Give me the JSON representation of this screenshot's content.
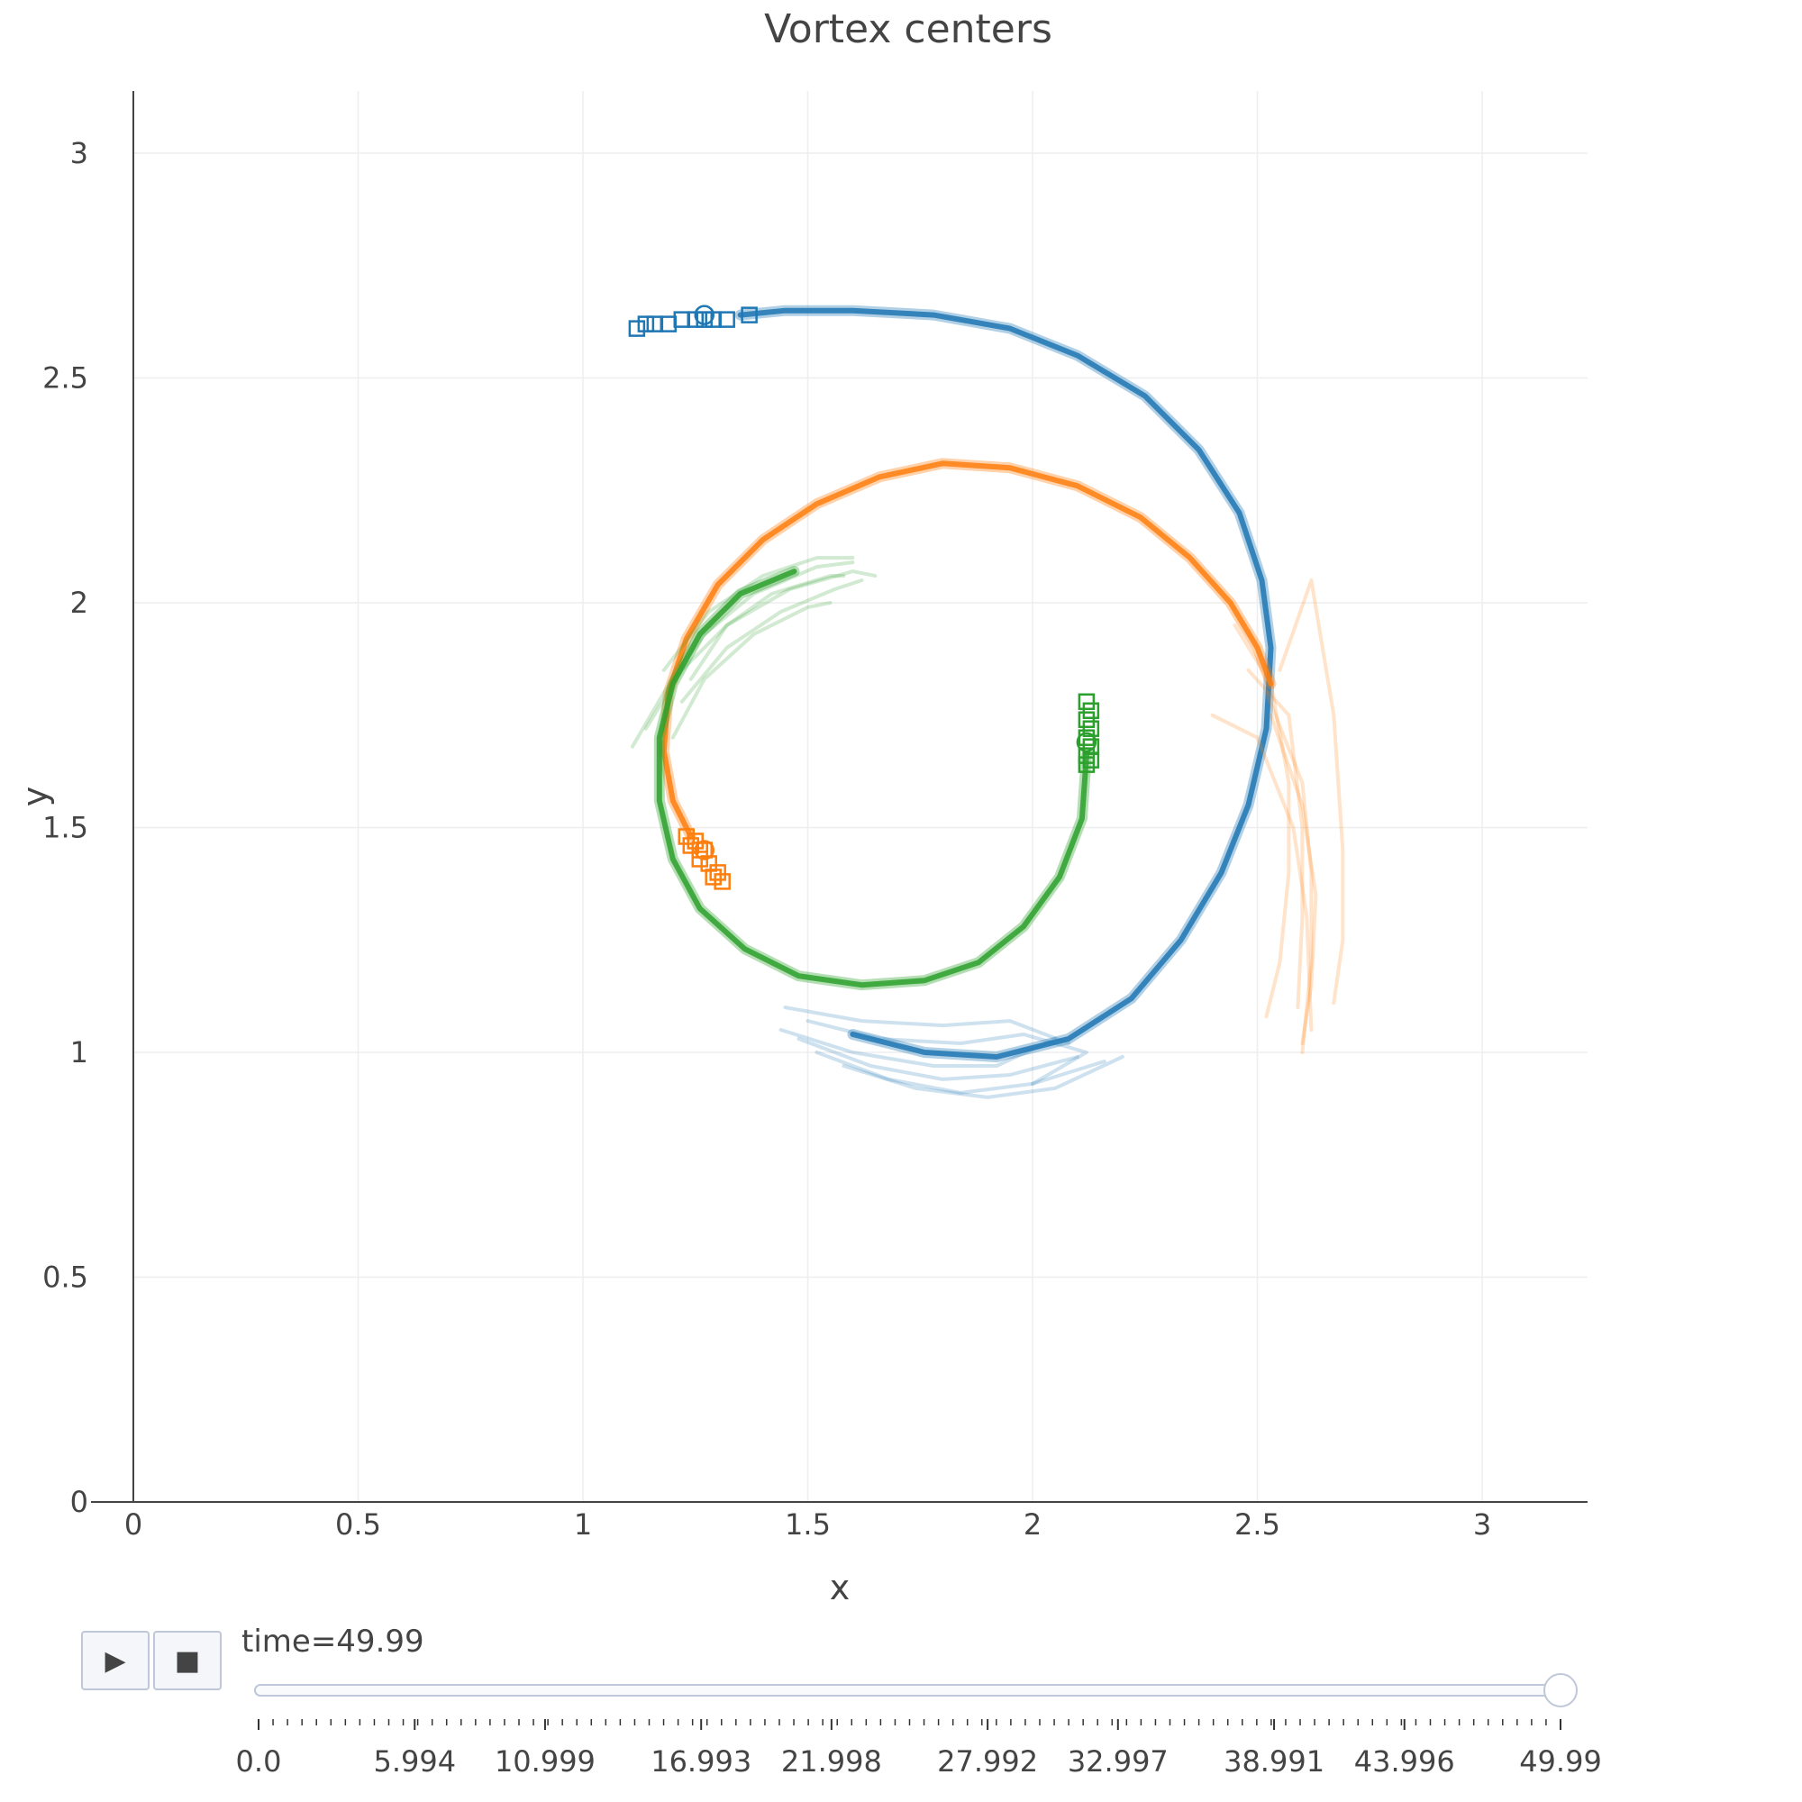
{
  "controls": {
    "play_icon": "play-icon",
    "stop_icon": "stop-icon",
    "play_glyph": "▶",
    "stop_glyph": "■"
  },
  "slider": {
    "label": "time=49.99",
    "current": 49.99,
    "min": 0.0,
    "max": 49.99,
    "labels": [
      "0.0",
      "5.994",
      "10.999",
      "16.993",
      "21.998",
      "27.992",
      "32.997",
      "38.991",
      "43.996",
      "49.99"
    ],
    "rail_color": "#bec8d9"
  },
  "chart_data": {
    "type": "scatter",
    "title": "Vortex centers",
    "xlabel": "x",
    "ylabel": "y",
    "xlim": [
      -0.1,
      3.23
    ],
    "ylim": [
      0,
      3.15
    ],
    "x_ticks": [
      0,
      0.5,
      1,
      1.5,
      2,
      2.5,
      3
    ],
    "x_tick_labels": [
      "0",
      "0.5",
      "1",
      "1.5",
      "2",
      "2.5",
      "3"
    ],
    "y_ticks": [
      0,
      0.5,
      1,
      1.5,
      2,
      2.5,
      3
    ],
    "y_tick_labels": [
      "0",
      "0.5",
      "1",
      "1.5",
      "2",
      "2.5",
      "3"
    ],
    "grid": true,
    "series": [
      {
        "color": "#1f77b4",
        "path": [
          [
            1.35,
            2.64
          ],
          [
            1.45,
            2.65
          ],
          [
            1.6,
            2.65
          ],
          [
            1.78,
            2.64
          ],
          [
            1.95,
            2.61
          ],
          [
            2.1,
            2.55
          ],
          [
            2.25,
            2.46
          ],
          [
            2.37,
            2.34
          ],
          [
            2.46,
            2.2
          ],
          [
            2.51,
            2.05
          ],
          [
            2.53,
            1.9
          ],
          [
            2.52,
            1.72
          ],
          [
            2.48,
            1.55
          ],
          [
            2.42,
            1.4
          ],
          [
            2.33,
            1.25
          ],
          [
            2.22,
            1.12
          ],
          [
            2.08,
            1.03
          ],
          [
            1.92,
            0.99
          ],
          [
            1.76,
            1.0
          ],
          [
            1.6,
            1.04
          ]
        ],
        "markers": [
          [
            1.12,
            2.61
          ],
          [
            1.14,
            2.62
          ],
          [
            1.16,
            2.62
          ],
          [
            1.19,
            2.62
          ],
          [
            1.22,
            2.63
          ],
          [
            1.25,
            2.63
          ],
          [
            1.27,
            2.63
          ],
          [
            1.29,
            2.63
          ],
          [
            1.32,
            2.63
          ],
          [
            1.37,
            2.64
          ]
        ],
        "current": [
          1.27,
          2.64
        ],
        "ghosts": [
          [
            [
              1.44,
              1.05
            ],
            [
              1.6,
              1.0
            ],
            [
              1.78,
              0.97
            ],
            [
              1.92,
              0.97
            ],
            [
              2.05,
              1.03
            ]
          ],
          [
            [
              1.48,
              1.03
            ],
            [
              1.64,
              0.97
            ],
            [
              1.8,
              0.94
            ],
            [
              1.95,
              0.95
            ],
            [
              2.1,
              0.99
            ]
          ],
          [
            [
              1.52,
              1.0
            ],
            [
              1.68,
              0.94
            ],
            [
              1.84,
              0.91
            ],
            [
              2.0,
              0.93
            ],
            [
              2.16,
              0.98
            ]
          ],
          [
            [
              1.58,
              0.97
            ],
            [
              1.74,
              0.92
            ],
            [
              1.9,
              0.9
            ],
            [
              2.05,
              0.92
            ],
            [
              2.2,
              0.99
            ]
          ],
          [
            [
              1.5,
              1.07
            ],
            [
              1.66,
              1.03
            ],
            [
              1.84,
              1.02
            ],
            [
              1.98,
              1.04
            ],
            [
              2.12,
              1.0
            ],
            [
              2.0,
              0.93
            ]
          ],
          [
            [
              1.45,
              1.1
            ],
            [
              1.62,
              1.07
            ],
            [
              1.8,
              1.06
            ],
            [
              1.95,
              1.07
            ],
            [
              2.08,
              1.02
            ]
          ]
        ]
      },
      {
        "color": "#ff7f0e",
        "path": [
          [
            1.24,
            1.48
          ],
          [
            1.2,
            1.56
          ],
          [
            1.18,
            1.67
          ],
          [
            1.19,
            1.8
          ],
          [
            1.23,
            1.92
          ],
          [
            1.3,
            2.04
          ],
          [
            1.4,
            2.14
          ],
          [
            1.52,
            2.22
          ],
          [
            1.66,
            2.28
          ],
          [
            1.8,
            2.31
          ],
          [
            1.95,
            2.3
          ],
          [
            2.1,
            2.26
          ],
          [
            2.24,
            2.19
          ],
          [
            2.35,
            2.1
          ],
          [
            2.44,
            2.0
          ],
          [
            2.5,
            1.9
          ],
          [
            2.53,
            1.82
          ]
        ],
        "markers": [
          [
            1.23,
            1.48
          ],
          [
            1.25,
            1.47
          ],
          [
            1.24,
            1.46
          ],
          [
            1.26,
            1.45
          ],
          [
            1.27,
            1.45
          ],
          [
            1.26,
            1.43
          ],
          [
            1.28,
            1.42
          ],
          [
            1.3,
            1.4
          ],
          [
            1.29,
            1.39
          ],
          [
            1.31,
            1.38
          ]
        ],
        "current": [
          1.27,
          1.45
        ],
        "ghosts": [
          [
            [
              2.45,
              1.95
            ],
            [
              2.53,
              1.82
            ],
            [
              2.57,
              1.6
            ],
            [
              2.57,
              1.4
            ],
            [
              2.55,
              1.2
            ],
            [
              2.52,
              1.08
            ]
          ],
          [
            [
              2.48,
              1.85
            ],
            [
              2.57,
              1.75
            ],
            [
              2.6,
              1.5
            ],
            [
              2.6,
              1.3
            ],
            [
              2.59,
              1.1
            ]
          ],
          [
            [
              2.4,
              1.75
            ],
            [
              2.5,
              1.7
            ],
            [
              2.58,
              1.5
            ],
            [
              2.61,
              1.3
            ],
            [
              2.62,
              1.05
            ]
          ],
          [
            [
              2.52,
              1.8
            ],
            [
              2.6,
              1.6
            ],
            [
              2.62,
              1.4
            ],
            [
              2.62,
              1.2
            ],
            [
              2.6,
              1.0
            ]
          ],
          [
            [
              2.55,
              1.85
            ],
            [
              2.62,
              2.05
            ],
            [
              2.67,
              1.75
            ],
            [
              2.69,
              1.45
            ],
            [
              2.69,
              1.25
            ],
            [
              2.67,
              1.11
            ]
          ],
          [
            [
              2.53,
              1.75
            ],
            [
              2.6,
              1.55
            ],
            [
              2.63,
              1.35
            ],
            [
              2.62,
              1.15
            ],
            [
              2.6,
              1.02
            ]
          ]
        ]
      },
      {
        "color": "#2ca02c",
        "path": [
          [
            2.12,
            1.66
          ],
          [
            2.11,
            1.52
          ],
          [
            2.06,
            1.39
          ],
          [
            1.98,
            1.28
          ],
          [
            1.88,
            1.2
          ],
          [
            1.76,
            1.16
          ],
          [
            1.62,
            1.15
          ],
          [
            1.48,
            1.17
          ],
          [
            1.36,
            1.23
          ],
          [
            1.26,
            1.32
          ],
          [
            1.2,
            1.43
          ],
          [
            1.17,
            1.56
          ],
          [
            1.17,
            1.7
          ],
          [
            1.2,
            1.82
          ],
          [
            1.26,
            1.93
          ],
          [
            1.35,
            2.02
          ],
          [
            1.47,
            2.07
          ]
        ],
        "markers": [
          [
            2.12,
            1.78
          ],
          [
            2.13,
            1.76
          ],
          [
            2.12,
            1.74
          ],
          [
            2.13,
            1.72
          ],
          [
            2.12,
            1.7
          ],
          [
            2.13,
            1.68
          ],
          [
            2.12,
            1.66
          ],
          [
            2.13,
            1.65
          ],
          [
            2.12,
            1.64
          ]
        ],
        "current": [
          2.12,
          1.69
        ],
        "ghosts": [
          [
            [
              1.11,
              1.68
            ],
            [
              1.18,
              1.8
            ],
            [
              1.27,
              1.93
            ],
            [
              1.38,
              2.02
            ],
            [
              1.52,
              2.08
            ],
            [
              1.6,
              2.09
            ]
          ],
          [
            [
              1.14,
              1.72
            ],
            [
              1.22,
              1.85
            ],
            [
              1.32,
              1.95
            ],
            [
              1.46,
              2.03
            ],
            [
              1.6,
              2.07
            ],
            [
              1.65,
              2.06
            ]
          ],
          [
            [
              1.22,
              1.78
            ],
            [
              1.32,
              1.9
            ],
            [
              1.44,
              1.98
            ],
            [
              1.56,
              2.03
            ],
            [
              1.62,
              2.05
            ]
          ],
          [
            [
              1.2,
              1.7
            ],
            [
              1.27,
              1.83
            ],
            [
              1.38,
              1.93
            ],
            [
              1.5,
              1.99
            ],
            [
              1.55,
              2.0
            ]
          ],
          [
            [
              1.18,
              1.85
            ],
            [
              1.28,
              1.98
            ],
            [
              1.4,
              2.06
            ],
            [
              1.52,
              2.1
            ],
            [
              1.6,
              2.1
            ]
          ],
          [
            [
              1.24,
              1.83
            ],
            [
              1.32,
              1.95
            ],
            [
              1.42,
              2.02
            ],
            [
              1.55,
              2.06
            ],
            [
              1.58,
              2.06
            ]
          ]
        ]
      }
    ]
  }
}
